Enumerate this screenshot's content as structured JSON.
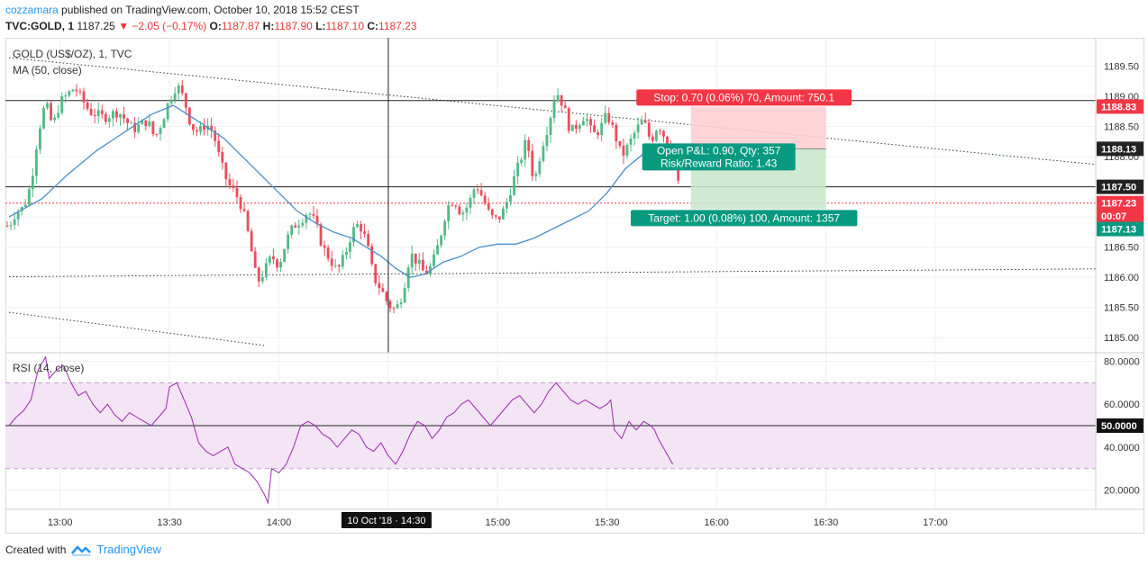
{
  "header": {
    "author": "cozzamara",
    "published_text": "published on TradingView.com, October 10, 2018 15:52 CEST",
    "symbol": "TVC:GOLD, 1",
    "last": "1187.25",
    "change": "▼ −2.05 (−0.17%)",
    "o_label": "O:",
    "o_value": "1187.87",
    "h_label": "H:",
    "h_value": "1187.90",
    "l_label": "L:",
    "l_value": "1187.10",
    "c_label": "C:",
    "c_value": "1187.23"
  },
  "pane_labels": {
    "main_title": "GOLD (US$/OZ), 1, TVC",
    "ma_label": "MA (50, close)",
    "rsi_label": "RSI (14, close)"
  },
  "footer": {
    "created_with": "Created with",
    "brand": "TradingView"
  },
  "colors": {
    "up": "#53b987",
    "down": "#eb4d5c",
    "ma": "#4a8fc7",
    "rsi": "#9c27b0",
    "rsi_band": "#f3e5f5",
    "stop_zone": "#ffcdd2",
    "target_zone": "#c8e6c9",
    "stop_label": "#f23645",
    "target_label": "#089981",
    "accent": "#2196f3"
  },
  "chart_data": {
    "type": "candlestick",
    "xaxis": {
      "ticks": [
        "13:00",
        "13:30",
        "14:00",
        "14:30",
        "15:00",
        "15:30",
        "16:00",
        "16:30",
        "17:00"
      ],
      "tick_minutes": [
        780,
        810,
        840,
        870,
        900,
        930,
        960,
        990,
        1020
      ],
      "crosshair_label": "10 Oct '18 · 14:30",
      "range_minutes": [
        765,
        1064
      ]
    },
    "price_axis": {
      "ticks": [
        "1185.00",
        "1185.50",
        "1186.00",
        "1186.50",
        "1187.00",
        "1187.50",
        "1188.00",
        "1188.50",
        "1189.00",
        "1189.50"
      ],
      "range": [
        1184.75,
        1189.97
      ],
      "badges": [
        {
          "value": 1188.83,
          "text": "1188.83",
          "color": "#f23645"
        },
        {
          "value": 1188.13,
          "text": "1188.13",
          "color": "#222222"
        },
        {
          "value": 1187.5,
          "text": "1187.50",
          "color": "#222222"
        },
        {
          "value": 1187.23,
          "text": "1187.23",
          "color": "#f23645"
        },
        {
          "value": 1187.02,
          "text": "00:07",
          "color": "#f23645"
        },
        {
          "value": 1186.8,
          "text": "1187.13",
          "color": "#089981"
        }
      ]
    },
    "rsi_axis": {
      "ticks": [
        "20.0000",
        "40.0000",
        "60.0000",
        "80.0000"
      ],
      "range": [
        11,
        84
      ],
      "band": [
        30,
        70
      ],
      "midline": 50,
      "midline_label": "50.0000"
    },
    "horizontal_lines": [
      1188.93,
      1187.5
    ],
    "last_price_line": 1187.23,
    "crosshair_minute": 870,
    "trendlines": [
      {
        "x1": 766,
        "y1": 1189.64,
        "x2": 1064,
        "y2": 1187.87
      },
      {
        "x1": 766,
        "y1": 1186.01,
        "x2": 1064,
        "y2": 1186.14
      },
      {
        "x1": 766,
        "y1": 1185.42,
        "x2": 836,
        "y2": 1184.87
      }
    ],
    "position": {
      "x_start": 953,
      "x_end": 990,
      "entry": 1188.13,
      "stop": 1188.83,
      "target": 1187.13,
      "stop_text": "Stop: 0.70 (0.06%) 70, Amount: 750.1",
      "target_text": "Target: 1.00 (0.08%) 100, Amount: 1357",
      "pnl_text": "Open P&L: 0.90, Qty: 357",
      "rr_text": "Risk/Reward Ratio: 1.43"
    },
    "ma_series": [
      [
        766,
        1187.0
      ],
      [
        775,
        1187.3
      ],
      [
        782,
        1187.7
      ],
      [
        790,
        1188.1
      ],
      [
        800,
        1188.5
      ],
      [
        805,
        1188.7
      ],
      [
        811,
        1188.85
      ],
      [
        815,
        1188.7
      ],
      [
        820,
        1188.5
      ],
      [
        825,
        1188.3
      ],
      [
        830,
        1188.0
      ],
      [
        835,
        1187.7
      ],
      [
        840,
        1187.4
      ],
      [
        845,
        1187.1
      ],
      [
        850,
        1186.9
      ],
      [
        855,
        1186.75
      ],
      [
        860,
        1186.65
      ],
      [
        864,
        1186.5
      ],
      [
        868,
        1186.35
      ],
      [
        872,
        1186.15
      ],
      [
        876,
        1186.0
      ],
      [
        880,
        1186.05
      ],
      [
        885,
        1186.25
      ],
      [
        890,
        1186.35
      ],
      [
        895,
        1186.5
      ],
      [
        900,
        1186.55
      ],
      [
        905,
        1186.55
      ],
      [
        910,
        1186.65
      ],
      [
        915,
        1186.8
      ],
      [
        920,
        1186.95
      ],
      [
        925,
        1187.1
      ],
      [
        930,
        1187.4
      ],
      [
        935,
        1187.8
      ],
      [
        940,
        1188.05
      ],
      [
        945,
        1188.15
      ],
      [
        948,
        1188.2
      ],
      [
        950,
        1188.1
      ]
    ],
    "candle_keyframes": [
      [
        766,
        1186.85
      ],
      [
        768,
        1187.1
      ],
      [
        770,
        1187.15
      ],
      [
        772,
        1187.55
      ],
      [
        774,
        1188.4
      ],
      [
        776,
        1188.9
      ],
      [
        778,
        1188.5
      ],
      [
        780,
        1188.9
      ],
      [
        784,
        1189.15
      ],
      [
        788,
        1188.75
      ],
      [
        792,
        1188.65
      ],
      [
        796,
        1188.75
      ],
      [
        800,
        1188.45
      ],
      [
        804,
        1188.6
      ],
      [
        806,
        1188.3
      ],
      [
        808,
        1188.6
      ],
      [
        810,
        1188.95
      ],
      [
        812,
        1189.2
      ],
      [
        814,
        1188.95
      ],
      [
        816,
        1188.5
      ],
      [
        818,
        1188.4
      ],
      [
        820,
        1188.55
      ],
      [
        822,
        1188.4
      ],
      [
        824,
        1187.9
      ],
      [
        826,
        1187.55
      ],
      [
        828,
        1187.4
      ],
      [
        830,
        1187.15
      ],
      [
        832,
        1186.6
      ],
      [
        834,
        1185.9
      ],
      [
        836,
        1186.1
      ],
      [
        838,
        1186.35
      ],
      [
        840,
        1186.2
      ],
      [
        842,
        1186.6
      ],
      [
        844,
        1186.85
      ],
      [
        846,
        1186.95
      ],
      [
        848,
        1187.1
      ],
      [
        850,
        1186.9
      ],
      [
        852,
        1186.5
      ],
      [
        854,
        1186.3
      ],
      [
        856,
        1186.1
      ],
      [
        858,
        1186.35
      ],
      [
        860,
        1186.75
      ],
      [
        862,
        1186.9
      ],
      [
        864,
        1186.6
      ],
      [
        866,
        1186.0
      ],
      [
        868,
        1185.8
      ],
      [
        870,
        1185.55
      ],
      [
        872,
        1185.45
      ],
      [
        874,
        1185.75
      ],
      [
        876,
        1186.4
      ],
      [
        878,
        1186.25
      ],
      [
        880,
        1186.05
      ],
      [
        882,
        1186.2
      ],
      [
        884,
        1186.6
      ],
      [
        886,
        1187.15
      ],
      [
        888,
        1187.3
      ],
      [
        890,
        1187.05
      ],
      [
        892,
        1187.2
      ],
      [
        894,
        1187.55
      ],
      [
        896,
        1187.3
      ],
      [
        898,
        1187.0
      ],
      [
        900,
        1186.95
      ],
      [
        902,
        1187.15
      ],
      [
        904,
        1187.55
      ],
      [
        906,
        1187.9
      ],
      [
        908,
        1188.3
      ],
      [
        910,
        1187.55
      ],
      [
        912,
        1188.15
      ],
      [
        914,
        1188.55
      ],
      [
        916,
        1189.1
      ],
      [
        918,
        1188.85
      ],
      [
        920,
        1188.4
      ],
      [
        922,
        1188.55
      ],
      [
        924,
        1188.7
      ],
      [
        926,
        1188.35
      ],
      [
        928,
        1188.45
      ],
      [
        930,
        1188.7
      ],
      [
        932,
        1188.4
      ],
      [
        934,
        1188.0
      ],
      [
        936,
        1188.2
      ],
      [
        938,
        1188.45
      ],
      [
        940,
        1188.6
      ],
      [
        942,
        1188.25
      ],
      [
        944,
        1188.55
      ],
      [
        946,
        1188.3
      ],
      [
        948,
        1188.1
      ],
      [
        949,
        1187.85
      ],
      [
        950,
        1187.23
      ]
    ],
    "rsi_keyframes": [
      [
        766,
        50
      ],
      [
        768,
        54
      ],
      [
        770,
        57
      ],
      [
        772,
        62
      ],
      [
        774,
        76
      ],
      [
        776,
        82
      ],
      [
        777,
        72
      ],
      [
        779,
        76
      ],
      [
        781,
        78
      ],
      [
        783,
        70
      ],
      [
        785,
        64
      ],
      [
        787,
        66
      ],
      [
        789,
        60
      ],
      [
        791,
        56
      ],
      [
        793,
        60
      ],
      [
        795,
        55
      ],
      [
        797,
        52
      ],
      [
        799,
        56
      ],
      [
        801,
        54
      ],
      [
        803,
        52
      ],
      [
        805,
        50
      ],
      [
        807,
        54
      ],
      [
        809,
        58
      ],
      [
        810,
        68
      ],
      [
        812,
        70
      ],
      [
        814,
        62
      ],
      [
        816,
        54
      ],
      [
        818,
        42
      ],
      [
        820,
        38
      ],
      [
        822,
        36
      ],
      [
        824,
        38
      ],
      [
        826,
        40
      ],
      [
        828,
        32
      ],
      [
        830,
        30
      ],
      [
        832,
        28
      ],
      [
        834,
        24
      ],
      [
        836,
        18
      ],
      [
        837,
        14
      ],
      [
        838,
        30
      ],
      [
        840,
        28
      ],
      [
        842,
        32
      ],
      [
        844,
        40
      ],
      [
        846,
        50
      ],
      [
        848,
        52
      ],
      [
        850,
        50
      ],
      [
        852,
        46
      ],
      [
        854,
        44
      ],
      [
        856,
        40
      ],
      [
        858,
        44
      ],
      [
        860,
        48
      ],
      [
        862,
        46
      ],
      [
        864,
        40
      ],
      [
        866,
        38
      ],
      [
        868,
        42
      ],
      [
        870,
        36
      ],
      [
        872,
        32
      ],
      [
        874,
        38
      ],
      [
        876,
        46
      ],
      [
        878,
        52
      ],
      [
        880,
        50
      ],
      [
        882,
        44
      ],
      [
        884,
        48
      ],
      [
        886,
        54
      ],
      [
        888,
        56
      ],
      [
        890,
        60
      ],
      [
        892,
        62
      ],
      [
        894,
        58
      ],
      [
        896,
        54
      ],
      [
        898,
        50
      ],
      [
        900,
        54
      ],
      [
        902,
        58
      ],
      [
        904,
        62
      ],
      [
        906,
        64
      ],
      [
        908,
        60
      ],
      [
        910,
        56
      ],
      [
        912,
        60
      ],
      [
        914,
        66
      ],
      [
        916,
        70
      ],
      [
        918,
        66
      ],
      [
        920,
        62
      ],
      [
        922,
        60
      ],
      [
        924,
        62
      ],
      [
        926,
        60
      ],
      [
        928,
        58
      ],
      [
        930,
        60
      ],
      [
        931,
        62
      ],
      [
        932,
        48
      ],
      [
        934,
        44
      ],
      [
        936,
        52
      ],
      [
        938,
        48
      ],
      [
        940,
        52
      ],
      [
        942,
        50
      ],
      [
        943,
        48
      ],
      [
        944,
        44
      ],
      [
        946,
        38
      ],
      [
        948,
        32
      ]
    ]
  }
}
